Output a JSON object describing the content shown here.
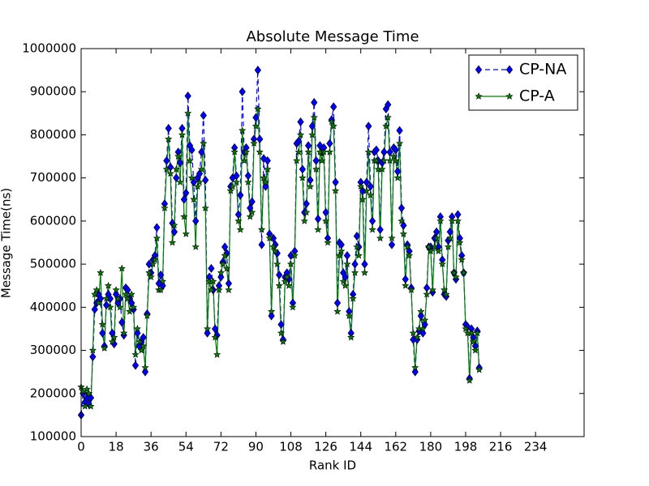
{
  "chart_data": {
    "type": "line",
    "title": "Absolute Message Time",
    "xlabel": "Rank ID",
    "ylabel": "Message Time(ns)",
    "xlim": [
      0,
      259
    ],
    "xticks": [
      0,
      18,
      36,
      54,
      72,
      90,
      108,
      126,
      144,
      162,
      180,
      198,
      216,
      234
    ],
    "ylim": [
      100000,
      1000000
    ],
    "yticks": [
      100000,
      200000,
      300000,
      400000,
      500000,
      600000,
      700000,
      800000,
      900000,
      1000000
    ],
    "legend": "upper right",
    "series": [
      {
        "name": "CP-NA",
        "color": "#0000ff",
        "linestyle": "dashed",
        "marker": "diamond",
        "values": [
          150000,
          200000,
          180000,
          190000,
          175000,
          190000,
          285000,
          395000,
          410000,
          430000,
          420000,
          340000,
          310000,
          405000,
          430000,
          420000,
          340000,
          315000,
          430000,
          410000,
          420000,
          365000,
          335000,
          445000,
          440000,
          420000,
          410000,
          395000,
          265000,
          340000,
          310000,
          320000,
          330000,
          250000,
          385000,
          500000,
          480000,
          510000,
          520000,
          585000,
          455000,
          475000,
          450000,
          640000,
          740000,
          815000,
          725000,
          595000,
          575000,
          700000,
          760000,
          735000,
          815000,
          650000,
          665000,
          890000,
          775000,
          765000,
          690000,
          600000,
          700000,
          710000,
          760000,
          845000,
          695000,
          340000,
          470000,
          490000,
          440000,
          350000,
          335000,
          450000,
          470000,
          505000,
          540000,
          525000,
          455000,
          680000,
          700000,
          770000,
          705000,
          615000,
          660000,
          900000,
          760000,
          770000,
          705000,
          630000,
          645000,
          790000,
          840000,
          950000,
          790000,
          545000,
          745000,
          680000,
          740000,
          570000,
          380000,
          560000,
          545000,
          525000,
          475000,
          360000,
          325000,
          470000,
          480000,
          465000,
          520000,
          410000,
          530000,
          780000,
          785000,
          830000,
          720000,
          620000,
          640000,
          775000,
          695000,
          820000,
          875000,
          740000,
          605000,
          775000,
          760000,
          770000,
          620000,
          560000,
          780000,
          835000,
          865000,
          690000,
          410000,
          550000,
          545000,
          480000,
          470000,
          520000,
          390000,
          340000,
          430000,
          500000,
          565000,
          540000,
          690000,
          670000,
          500000,
          690000,
          820000,
          680000,
          600000,
          760000,
          765000,
          740000,
          580000,
          735000,
          760000,
          860000,
          870000,
          760000,
          545000,
          770000,
          765000,
          715000,
          810000,
          630000,
          590000,
          465000,
          545000,
          530000,
          445000,
          325000,
          250000,
          325000,
          345000,
          380000,
          340000,
          360000,
          445000,
          540000,
          540000,
          435000,
          560000,
          575000,
          540000,
          610000,
          510000,
          430000,
          425000,
          555000,
          575000,
          610000,
          480000,
          465000,
          615000,
          560000,
          520000,
          480000,
          360000,
          355000,
          235000,
          350000,
          330000,
          310000,
          345000,
          260000
        ]
      },
      {
        "name": "CP-A",
        "color": "#008000",
        "linestyle": "solid",
        "marker": "star",
        "values": [
          215000,
          205000,
          170000,
          210000,
          200000,
          170000,
          300000,
          430000,
          440000,
          410000,
          480000,
          360000,
          305000,
          420000,
          450000,
          400000,
          320000,
          330000,
          440000,
          420000,
          400000,
          490000,
          340000,
          430000,
          420000,
          390000,
          430000,
          400000,
          290000,
          350000,
          320000,
          300000,
          310000,
          260000,
          380000,
          480000,
          470000,
          500000,
          510000,
          560000,
          440000,
          440000,
          460000,
          630000,
          720000,
          790000,
          710000,
          550000,
          590000,
          720000,
          750000,
          690000,
          800000,
          610000,
          570000,
          850000,
          740000,
          700000,
          650000,
          540000,
          680000,
          690000,
          720000,
          780000,
          630000,
          350000,
          460000,
          440000,
          460000,
          330000,
          290000,
          440000,
          480000,
          500000,
          520000,
          490000,
          440000,
          670000,
          680000,
          760000,
          690000,
          600000,
          580000,
          810000,
          740000,
          760000,
          690000,
          610000,
          620000,
          780000,
          820000,
          860000,
          760000,
          580000,
          700000,
          690000,
          720000,
          560000,
          390000,
          540000,
          530000,
          500000,
          450000,
          340000,
          320000,
          460000,
          470000,
          450000,
          500000,
          400000,
          520000,
          740000,
          760000,
          800000,
          700000,
          600000,
          620000,
          760000,
          680000,
          800000,
          840000,
          720000,
          580000,
          760000,
          740000,
          760000,
          600000,
          550000,
          760000,
          830000,
          820000,
          670000,
          390000,
          520000,
          530000,
          460000,
          450000,
          500000,
          380000,
          330000,
          420000,
          480000,
          540000,
          520000,
          680000,
          650000,
          480000,
          670000,
          760000,
          660000,
          580000,
          740000,
          740000,
          720000,
          560000,
          720000,
          740000,
          820000,
          840000,
          740000,
          560000,
          750000,
          740000,
          700000,
          780000,
          600000,
          570000,
          450000,
          540000,
          520000,
          440000,
          340000,
          260000,
          330000,
          350000,
          390000,
          350000,
          370000,
          430000,
          540000,
          530000,
          440000,
          540000,
          560000,
          530000,
          600000,
          500000,
          440000,
          430000,
          540000,
          560000,
          600000,
          480000,
          470000,
          600000,
          550000,
          510000,
          480000,
          350000,
          340000,
          230000,
          340000,
          320000,
          300000,
          340000,
          255000
        ]
      }
    ]
  }
}
